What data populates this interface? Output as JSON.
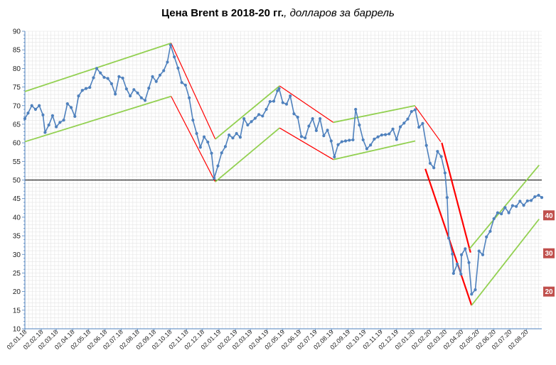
{
  "title_bold": "Цена Brent в 2018-20 гг.",
  "title_italic": ", долларов за баррель",
  "chart_data": {
    "type": "line",
    "title": "Цена Brent в 2018-20 гг., долларов за баррель",
    "ylim": [
      10,
      90
    ],
    "ytick_step": 5,
    "yticks": [
      "10",
      "15",
      "20",
      "25",
      "30",
      "35",
      "40",
      "45",
      "50",
      "55",
      "60",
      "65",
      "70",
      "75",
      "80",
      "85",
      "90"
    ],
    "xlim": [
      "2018-01-02",
      "2020-08-31"
    ],
    "xticks": [
      {
        "label": "02.01.18",
        "date": "2018-01-02"
      },
      {
        "label": "02.02.18",
        "date": "2018-02-02"
      },
      {
        "label": "02.03.18",
        "date": "2018-03-02"
      },
      {
        "label": "02.04.18",
        "date": "2018-04-02"
      },
      {
        "label": "02.05.18",
        "date": "2018-05-02"
      },
      {
        "label": "02.06.18",
        "date": "2018-06-02"
      },
      {
        "label": "02.07.18",
        "date": "2018-07-02"
      },
      {
        "label": "02.08.18",
        "date": "2018-08-02"
      },
      {
        "label": "02.09.18",
        "date": "2018-09-02"
      },
      {
        "label": "02.10.18",
        "date": "2018-10-02"
      },
      {
        "label": "02.11.18",
        "date": "2018-11-02"
      },
      {
        "label": "02.12.18",
        "date": "2018-12-02"
      },
      {
        "label": "02.01.19",
        "date": "2019-01-02"
      },
      {
        "label": "02.02.19",
        "date": "2019-02-02"
      },
      {
        "label": "02.03.19",
        "date": "2019-03-02"
      },
      {
        "label": "02.04.19",
        "date": "2019-04-02"
      },
      {
        "label": "02.05.19",
        "date": "2019-05-02"
      },
      {
        "label": "02.06.19",
        "date": "2019-06-02"
      },
      {
        "label": "02.07.19",
        "date": "2019-07-02"
      },
      {
        "label": "02.08.19",
        "date": "2019-08-02"
      },
      {
        "label": "02.09.19",
        "date": "2019-09-02"
      },
      {
        "label": "02.10.19",
        "date": "2019-10-02"
      },
      {
        "label": "02.11.19",
        "date": "2019-11-02"
      },
      {
        "label": "02.12.19",
        "date": "2019-12-02"
      },
      {
        "label": "02.01.20",
        "date": "2020-01-02"
      },
      {
        "label": "02.02.20",
        "date": "2020-02-02"
      },
      {
        "label": "02.03.20",
        "date": "2020-03-02"
      },
      {
        "label": "02.04.20",
        "date": "2020-04-02"
      },
      {
        "label": "02.05.20",
        "date": "2020-05-02"
      },
      {
        "label": "02.06.20",
        "date": "2020-06-02"
      },
      {
        "label": "02.07.20",
        "date": "2020-07-02"
      },
      {
        "label": "02.08.20",
        "date": "2020-08-02"
      }
    ],
    "reference_line": {
      "y": 50,
      "color": "#000000"
    },
    "grid": true,
    "series": [
      {
        "color": "#4f81bd",
        "points": [
          [
            "2018-01-02",
            66.5
          ],
          [
            "2018-01-08",
            68.0
          ],
          [
            "2018-01-15",
            70.0
          ],
          [
            "2018-01-22",
            69.0
          ],
          [
            "2018-01-29",
            70.0
          ],
          [
            "2018-02-05",
            67.5
          ],
          [
            "2018-02-09",
            62.8
          ],
          [
            "2018-02-16",
            64.8
          ],
          [
            "2018-02-23",
            67.3
          ],
          [
            "2018-03-02",
            64.3
          ],
          [
            "2018-03-09",
            65.5
          ],
          [
            "2018-03-16",
            66.1
          ],
          [
            "2018-03-23",
            70.5
          ],
          [
            "2018-03-30",
            69.5
          ],
          [
            "2018-04-06",
            67.1
          ],
          [
            "2018-04-13",
            72.6
          ],
          [
            "2018-04-20",
            74.1
          ],
          [
            "2018-04-27",
            74.6
          ],
          [
            "2018-05-04",
            74.9
          ],
          [
            "2018-05-11",
            77.5
          ],
          [
            "2018-05-17",
            80.0
          ],
          [
            "2018-05-24",
            78.8
          ],
          [
            "2018-05-31",
            77.6
          ],
          [
            "2018-06-07",
            77.3
          ],
          [
            "2018-06-14",
            75.9
          ],
          [
            "2018-06-21",
            73.1
          ],
          [
            "2018-06-28",
            77.8
          ],
          [
            "2018-07-05",
            77.4
          ],
          [
            "2018-07-12",
            74.5
          ],
          [
            "2018-07-19",
            72.6
          ],
          [
            "2018-07-26",
            74.3
          ],
          [
            "2018-08-02",
            73.4
          ],
          [
            "2018-08-09",
            72.1
          ],
          [
            "2018-08-16",
            71.4
          ],
          [
            "2018-08-23",
            74.7
          ],
          [
            "2018-08-30",
            77.8
          ],
          [
            "2018-09-06",
            76.5
          ],
          [
            "2018-09-13",
            78.2
          ],
          [
            "2018-09-20",
            79.4
          ],
          [
            "2018-09-27",
            81.7
          ],
          [
            "2018-10-03",
            86.3
          ],
          [
            "2018-10-10",
            83.1
          ],
          [
            "2018-10-17",
            80.1
          ],
          [
            "2018-10-24",
            76.2
          ],
          [
            "2018-10-31",
            75.5
          ],
          [
            "2018-11-07",
            72.1
          ],
          [
            "2018-11-14",
            66.1
          ],
          [
            "2018-11-21",
            62.5
          ],
          [
            "2018-11-28",
            58.8
          ],
          [
            "2018-12-05",
            61.6
          ],
          [
            "2018-12-12",
            60.2
          ],
          [
            "2018-12-19",
            57.2
          ],
          [
            "2018-12-24",
            50.5
          ],
          [
            "2018-12-31",
            53.8
          ],
          [
            "2019-01-07",
            57.3
          ],
          [
            "2019-01-14",
            59.0
          ],
          [
            "2019-01-21",
            62.1
          ],
          [
            "2019-01-28",
            61.3
          ],
          [
            "2019-02-04",
            62.5
          ],
          [
            "2019-02-11",
            61.5
          ],
          [
            "2019-02-18",
            66.5
          ],
          [
            "2019-02-25",
            64.8
          ],
          [
            "2019-03-04",
            65.7
          ],
          [
            "2019-03-11",
            66.6
          ],
          [
            "2019-03-18",
            67.6
          ],
          [
            "2019-03-25",
            67.2
          ],
          [
            "2019-04-01",
            69.0
          ],
          [
            "2019-04-08",
            71.1
          ],
          [
            "2019-04-15",
            71.2
          ],
          [
            "2019-04-22",
            74.0
          ],
          [
            "2019-04-25",
            74.6
          ],
          [
            "2019-05-02",
            70.8
          ],
          [
            "2019-05-09",
            70.4
          ],
          [
            "2019-05-16",
            72.6
          ],
          [
            "2019-05-23",
            67.8
          ],
          [
            "2019-05-30",
            66.9
          ],
          [
            "2019-06-06",
            61.7
          ],
          [
            "2019-06-13",
            61.3
          ],
          [
            "2019-06-20",
            64.5
          ],
          [
            "2019-06-27",
            66.5
          ],
          [
            "2019-07-04",
            63.3
          ],
          [
            "2019-07-11",
            66.5
          ],
          [
            "2019-07-18",
            61.9
          ],
          [
            "2019-07-25",
            63.4
          ],
          [
            "2019-08-01",
            60.5
          ],
          [
            "2019-08-07",
            56.2
          ],
          [
            "2019-08-14",
            59.5
          ],
          [
            "2019-08-21",
            60.3
          ],
          [
            "2019-08-28",
            60.5
          ],
          [
            "2019-09-04",
            60.7
          ],
          [
            "2019-09-11",
            60.8
          ],
          [
            "2019-09-16",
            69.0
          ],
          [
            "2019-09-23",
            64.8
          ],
          [
            "2019-09-30",
            60.8
          ],
          [
            "2019-10-07",
            58.4
          ],
          [
            "2019-10-14",
            59.4
          ],
          [
            "2019-10-21",
            61.0
          ],
          [
            "2019-10-28",
            61.6
          ],
          [
            "2019-11-04",
            62.1
          ],
          [
            "2019-11-11",
            62.2
          ],
          [
            "2019-11-18",
            62.4
          ],
          [
            "2019-11-25",
            63.7
          ],
          [
            "2019-12-02",
            60.9
          ],
          [
            "2019-12-09",
            64.3
          ],
          [
            "2019-12-16",
            65.3
          ],
          [
            "2019-12-23",
            66.4
          ],
          [
            "2019-12-30",
            68.4
          ],
          [
            "2020-01-06",
            68.9
          ],
          [
            "2020-01-13",
            64.2
          ],
          [
            "2020-01-20",
            65.2
          ],
          [
            "2020-01-27",
            59.3
          ],
          [
            "2020-02-03",
            54.5
          ],
          [
            "2020-02-10",
            53.3
          ],
          [
            "2020-02-17",
            57.7
          ],
          [
            "2020-02-24",
            56.3
          ],
          [
            "2020-03-02",
            51.9
          ],
          [
            "2020-03-06",
            45.3
          ],
          [
            "2020-03-09",
            34.4
          ],
          [
            "2020-03-16",
            30.1
          ],
          [
            "2020-03-18",
            24.9
          ],
          [
            "2020-03-25",
            27.4
          ],
          [
            "2020-04-01",
            24.7
          ],
          [
            "2020-04-02",
            29.9
          ],
          [
            "2020-04-09",
            31.5
          ],
          [
            "2020-04-16",
            27.8
          ],
          [
            "2020-04-21",
            19.3
          ],
          [
            "2020-04-28",
            20.5
          ],
          [
            "2020-05-05",
            30.9
          ],
          [
            "2020-05-12",
            29.9
          ],
          [
            "2020-05-19",
            34.7
          ],
          [
            "2020-05-26",
            36.2
          ],
          [
            "2020-06-02",
            39.6
          ],
          [
            "2020-06-09",
            41.2
          ],
          [
            "2020-06-16",
            40.9
          ],
          [
            "2020-06-23",
            42.6
          ],
          [
            "2020-06-30",
            41.2
          ],
          [
            "2020-07-07",
            43.1
          ],
          [
            "2020-07-14",
            42.9
          ],
          [
            "2020-07-21",
            44.3
          ],
          [
            "2020-07-28",
            43.2
          ],
          [
            "2020-08-04",
            44.4
          ],
          [
            "2020-08-11",
            44.5
          ],
          [
            "2020-08-18",
            45.5
          ],
          [
            "2020-08-25",
            45.9
          ],
          [
            "2020-08-31",
            45.3
          ]
        ]
      }
    ],
    "trend_lines": [
      {
        "color": "#92d050",
        "from": [
          "2018-01-02",
          73.8
        ],
        "to": [
          "2018-10-04",
          86.8
        ]
      },
      {
        "color": "#92d050",
        "from": [
          "2018-01-02",
          60.3
        ],
        "to": [
          "2018-10-04",
          72.5
        ]
      },
      {
        "color": "#ff0000",
        "from": [
          "2018-10-04",
          86.8
        ],
        "to": [
          "2018-12-26",
          61.0
        ]
      },
      {
        "color": "#ff0000",
        "from": [
          "2018-10-04",
          72.5
        ],
        "to": [
          "2018-12-26",
          49.5
        ]
      },
      {
        "color": "#92d050",
        "from": [
          "2018-12-26",
          61.0
        ],
        "to": [
          "2019-04-26",
          75.3
        ]
      },
      {
        "color": "#92d050",
        "from": [
          "2018-12-26",
          49.5
        ],
        "to": [
          "2019-04-26",
          64.0
        ]
      },
      {
        "color": "#ff0000",
        "from": [
          "2019-04-26",
          75.3
        ],
        "to": [
          "2019-08-05",
          65.5
        ]
      },
      {
        "color": "#ff0000",
        "from": [
          "2019-04-26",
          64.0
        ],
        "to": [
          "2019-08-05",
          55.5
        ]
      },
      {
        "color": "#92d050",
        "from": [
          "2019-08-05",
          65.5
        ],
        "to": [
          "2020-01-06",
          70.0
        ]
      },
      {
        "color": "#92d050",
        "from": [
          "2019-08-05",
          55.5
        ],
        "to": [
          "2020-01-06",
          60.5
        ]
      },
      {
        "color": "#ff0000",
        "from": [
          "2020-01-06",
          69.8
        ],
        "to": [
          "2020-02-23",
          60.3
        ]
      },
      {
        "color": "#ff0000",
        "from": [
          "2020-02-25",
          60.0
        ],
        "to": [
          "2020-04-19",
          30.5
        ]
      },
      {
        "color": "#ff0000",
        "from": [
          "2020-01-25",
          53.0
        ],
        "to": [
          "2020-04-21",
          16.3
        ]
      },
      {
        "color": "#92d050",
        "from": [
          "2020-04-21",
          16.3
        ],
        "to": [
          "2020-08-26",
          39.5
        ]
      },
      {
        "color": "#92d050",
        "from": [
          "2020-04-17",
          31.5
        ],
        "to": [
          "2020-08-26",
          54.0
        ]
      }
    ],
    "level_labels": [
      {
        "text": "40",
        "y": 40.5,
        "color": "#c0504d"
      },
      {
        "text": "30",
        "y": 30.3,
        "color": "#c0504d"
      },
      {
        "text": "20",
        "y": 20.0,
        "color": "#c0504d"
      }
    ]
  }
}
